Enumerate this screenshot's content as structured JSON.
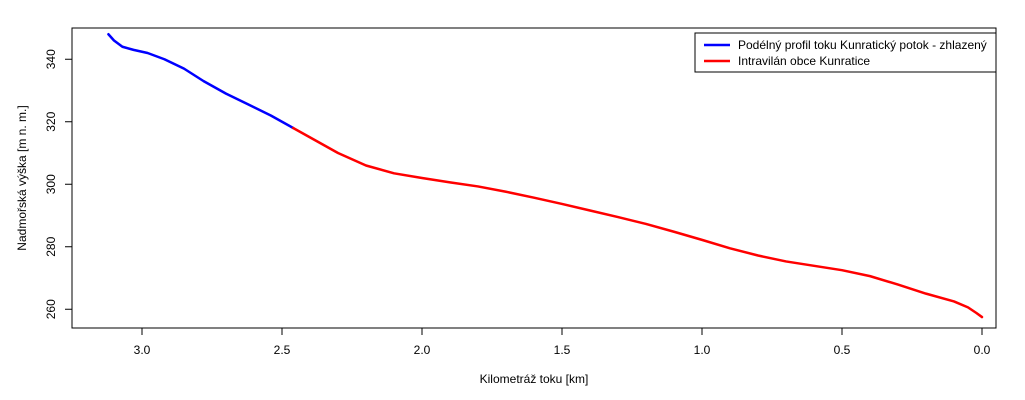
{
  "chart_data": {
    "type": "line",
    "xlabel": "Kilometráž toku [km]",
    "ylabel": "Nadmořská výška [m n. m.]",
    "xlim": [
      3.25,
      -0.05
    ],
    "ylim": [
      254,
      350
    ],
    "x_axis_reversed": true,
    "xticks": [
      3.0,
      2.5,
      2.0,
      1.5,
      1.0,
      0.5,
      0.0
    ],
    "xtick_labels": [
      "3.0",
      "2.5",
      "2.0",
      "1.5",
      "1.0",
      "0.5",
      "0.0"
    ],
    "yticks": [
      260,
      280,
      300,
      320,
      340
    ],
    "ytick_labels": [
      "260",
      "280",
      "300",
      "320",
      "340"
    ],
    "grid": false,
    "legend_position": "top-right",
    "series": [
      {
        "name": "Podélný profil toku Kunratický potok - zhlazený",
        "color": "#0000ff",
        "x": [
          3.12,
          3.1,
          3.07,
          3.03,
          2.98,
          2.92,
          2.85,
          2.78,
          2.7,
          2.62,
          2.54,
          2.46
        ],
        "y": [
          348,
          346,
          344,
          343,
          342,
          340,
          337,
          333,
          329,
          325.5,
          322,
          318
        ]
      },
      {
        "name": "Intravilán obce Kunratice",
        "color": "#ff0000",
        "x": [
          2.46,
          2.4,
          2.3,
          2.2,
          2.1,
          2.0,
          1.9,
          1.8,
          1.7,
          1.6,
          1.5,
          1.4,
          1.3,
          1.2,
          1.1,
          1.0,
          0.9,
          0.8,
          0.7,
          0.6,
          0.5,
          0.4,
          0.3,
          0.2,
          0.1,
          0.05,
          0.02,
          0.0
        ],
        "y": [
          318,
          315,
          310,
          306,
          303.5,
          302,
          300.6,
          299.3,
          297.6,
          295.7,
          293.7,
          291.6,
          289.5,
          287.3,
          284.8,
          282.2,
          279.5,
          277.2,
          275.3,
          273.9,
          272.5,
          270.6,
          267.9,
          265.0,
          262.5,
          260.6,
          258.8,
          257.5
        ]
      }
    ]
  }
}
